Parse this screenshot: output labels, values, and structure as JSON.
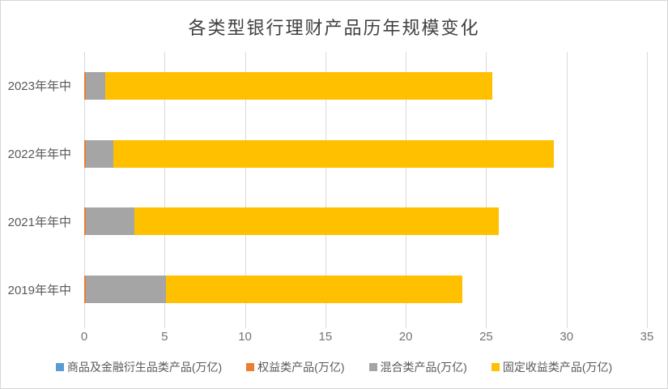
{
  "frame": {
    "background": "#FFFFFF",
    "border_color": "#D6D6D6"
  },
  "chart_data": {
    "type": "bar",
    "orientation": "horizontal",
    "stacked": true,
    "title": "各类型银行理财产品历年规模变化",
    "categories": [
      "2023年年中",
      "2022年年中",
      "2021年年中",
      "2019年年中"
    ],
    "series": [
      {
        "name": "商品及金融衍生品类产品(万亿)",
        "color": "#5B9BD5",
        "values": [
          0,
          0,
          0,
          0
        ]
      },
      {
        "name": "权益类产品(万亿)",
        "color": "#ED7D31",
        "values": [
          0.1,
          0.1,
          0.1,
          0.1
        ]
      },
      {
        "name": "混合类产品(万亿)",
        "color": "#A5A5A5",
        "values": [
          1.2,
          1.7,
          3.0,
          5.0
        ]
      },
      {
        "name": "固定收益类产品(万亿)",
        "color": "#FFC000",
        "values": [
          24.1,
          27.4,
          22.7,
          18.4
        ]
      }
    ],
    "totals": [
      25.4,
      29.2,
      25.8,
      23.5
    ],
    "xlabel": "",
    "ylabel": "",
    "xlim": [
      0,
      35
    ],
    "x_ticks": [
      0,
      5,
      10,
      15,
      20,
      25,
      30,
      35
    ],
    "grid": "vertical-only",
    "gridline_color": "#D9D9D9",
    "legend_position": "bottom",
    "text_colors": {
      "title": "#404040",
      "tick_labels": "#737373",
      "category_labels": "#595959",
      "legend_labels": "#595959"
    }
  }
}
